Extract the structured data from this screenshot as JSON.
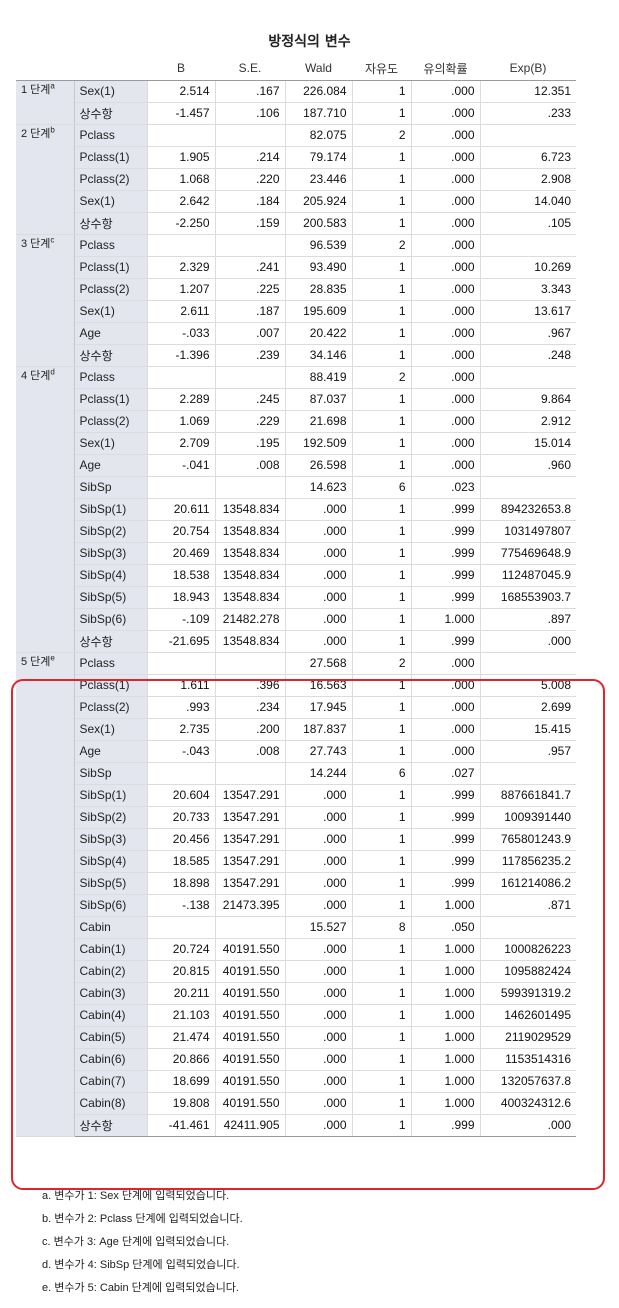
{
  "title": "방정식의 변수",
  "columns": [
    "",
    "",
    "B",
    "S.E.",
    "Wald",
    "자유도",
    "유의확률",
    "Exp(B)"
  ],
  "steps": [
    {
      "label": "1 단계",
      "sup": "a",
      "rows": [
        [
          "Sex(1)",
          "2.514",
          ".167",
          "226.084",
          "1",
          ".000",
          "12.351"
        ],
        [
          "상수항",
          "-1.457",
          ".106",
          "187.710",
          "1",
          ".000",
          ".233"
        ]
      ]
    },
    {
      "label": "2 단계",
      "sup": "b",
      "rows": [
        [
          "Pclass",
          "",
          "",
          "82.075",
          "2",
          ".000",
          ""
        ],
        [
          "Pclass(1)",
          "1.905",
          ".214",
          "79.174",
          "1",
          ".000",
          "6.723"
        ],
        [
          "Pclass(2)",
          "1.068",
          ".220",
          "23.446",
          "1",
          ".000",
          "2.908"
        ],
        [
          "Sex(1)",
          "2.642",
          ".184",
          "205.924",
          "1",
          ".000",
          "14.040"
        ],
        [
          "상수항",
          "-2.250",
          ".159",
          "200.583",
          "1",
          ".000",
          ".105"
        ]
      ]
    },
    {
      "label": "3 단계",
      "sup": "c",
      "rows": [
        [
          "Pclass",
          "",
          "",
          "96.539",
          "2",
          ".000",
          ""
        ],
        [
          "Pclass(1)",
          "2.329",
          ".241",
          "93.490",
          "1",
          ".000",
          "10.269"
        ],
        [
          "Pclass(2)",
          "1.207",
          ".225",
          "28.835",
          "1",
          ".000",
          "3.343"
        ],
        [
          "Sex(1)",
          "2.611",
          ".187",
          "195.609",
          "1",
          ".000",
          "13.617"
        ],
        [
          "Age",
          "-.033",
          ".007",
          "20.422",
          "1",
          ".000",
          ".967"
        ],
        [
          "상수항",
          "-1.396",
          ".239",
          "34.146",
          "1",
          ".000",
          ".248"
        ]
      ]
    },
    {
      "label": "4 단계",
      "sup": "d",
      "rows": [
        [
          "Pclass",
          "",
          "",
          "88.419",
          "2",
          ".000",
          ""
        ],
        [
          "Pclass(1)",
          "2.289",
          ".245",
          "87.037",
          "1",
          ".000",
          "9.864"
        ],
        [
          "Pclass(2)",
          "1.069",
          ".229",
          "21.698",
          "1",
          ".000",
          "2.912"
        ],
        [
          "Sex(1)",
          "2.709",
          ".195",
          "192.509",
          "1",
          ".000",
          "15.014"
        ],
        [
          "Age",
          "-.041",
          ".008",
          "26.598",
          "1",
          ".000",
          ".960"
        ],
        [
          "SibSp",
          "",
          "",
          "14.623",
          "6",
          ".023",
          ""
        ],
        [
          "SibSp(1)",
          "20.611",
          "13548.834",
          ".000",
          "1",
          ".999",
          "894232653.8"
        ],
        [
          "SibSp(2)",
          "20.754",
          "13548.834",
          ".000",
          "1",
          ".999",
          "1031497807"
        ],
        [
          "SibSp(3)",
          "20.469",
          "13548.834",
          ".000",
          "1",
          ".999",
          "775469648.9"
        ],
        [
          "SibSp(4)",
          "18.538",
          "13548.834",
          ".000",
          "1",
          ".999",
          "112487045.9"
        ],
        [
          "SibSp(5)",
          "18.943",
          "13548.834",
          ".000",
          "1",
          ".999",
          "168553903.7"
        ],
        [
          "SibSp(6)",
          "-.109",
          "21482.278",
          ".000",
          "1",
          "1.000",
          ".897"
        ],
        [
          "상수항",
          "-21.695",
          "13548.834",
          ".000",
          "1",
          ".999",
          ".000"
        ]
      ]
    },
    {
      "label": "5 단계",
      "sup": "e",
      "rows": [
        [
          "Pclass",
          "",
          "",
          "27.568",
          "2",
          ".000",
          ""
        ],
        [
          "Pclass(1)",
          "1.611",
          ".396",
          "16.563",
          "1",
          ".000",
          "5.008"
        ],
        [
          "Pclass(2)",
          ".993",
          ".234",
          "17.945",
          "1",
          ".000",
          "2.699"
        ],
        [
          "Sex(1)",
          "2.735",
          ".200",
          "187.837",
          "1",
          ".000",
          "15.415"
        ],
        [
          "Age",
          "-.043",
          ".008",
          "27.743",
          "1",
          ".000",
          ".957"
        ],
        [
          "SibSp",
          "",
          "",
          "14.244",
          "6",
          ".027",
          ""
        ],
        [
          "SibSp(1)",
          "20.604",
          "13547.291",
          ".000",
          "1",
          ".999",
          "887661841.7"
        ],
        [
          "SibSp(2)",
          "20.733",
          "13547.291",
          ".000",
          "1",
          ".999",
          "1009391440"
        ],
        [
          "SibSp(3)",
          "20.456",
          "13547.291",
          ".000",
          "1",
          ".999",
          "765801243.9"
        ],
        [
          "SibSp(4)",
          "18.585",
          "13547.291",
          ".000",
          "1",
          ".999",
          "117856235.2"
        ],
        [
          "SibSp(5)",
          "18.898",
          "13547.291",
          ".000",
          "1",
          ".999",
          "161214086.2"
        ],
        [
          "SibSp(6)",
          "-.138",
          "21473.395",
          ".000",
          "1",
          "1.000",
          ".871"
        ],
        [
          "Cabin",
          "",
          "",
          "15.527",
          "8",
          ".050",
          ""
        ],
        [
          "Cabin(1)",
          "20.724",
          "40191.550",
          ".000",
          "1",
          "1.000",
          "1000826223"
        ],
        [
          "Cabin(2)",
          "20.815",
          "40191.550",
          ".000",
          "1",
          "1.000",
          "1095882424"
        ],
        [
          "Cabin(3)",
          "20.211",
          "40191.550",
          ".000",
          "1",
          "1.000",
          "599391319.2"
        ],
        [
          "Cabin(4)",
          "21.103",
          "40191.550",
          ".000",
          "1",
          "1.000",
          "1462601495"
        ],
        [
          "Cabin(5)",
          "21.474",
          "40191.550",
          ".000",
          "1",
          "1.000",
          "2119029529"
        ],
        [
          "Cabin(6)",
          "20.866",
          "40191.550",
          ".000",
          "1",
          "1.000",
          "1153514316"
        ],
        [
          "Cabin(7)",
          "18.699",
          "40191.550",
          ".000",
          "1",
          "1.000",
          "132057637.8"
        ],
        [
          "Cabin(8)",
          "19.808",
          "40191.550",
          ".000",
          "1",
          "1.000",
          "400324312.6"
        ],
        [
          "상수항",
          "-41.461",
          "42411.905",
          ".000",
          "1",
          ".999",
          ".000"
        ]
      ]
    }
  ],
  "footnotes": [
    "a. 변수가 1: Sex 단계에 입력되었습니다.",
    "b. 변수가 2: Pclass 단계에 입력되었습니다.",
    "c. 변수가 3: Age 단계에 입력되었습니다.",
    "d. 변수가 4: SibSp 단계에 입력되었습니다.",
    "e. 변수가 5: Cabin 단계에 입력되었습니다."
  ],
  "highlight_color": "#e0242c"
}
